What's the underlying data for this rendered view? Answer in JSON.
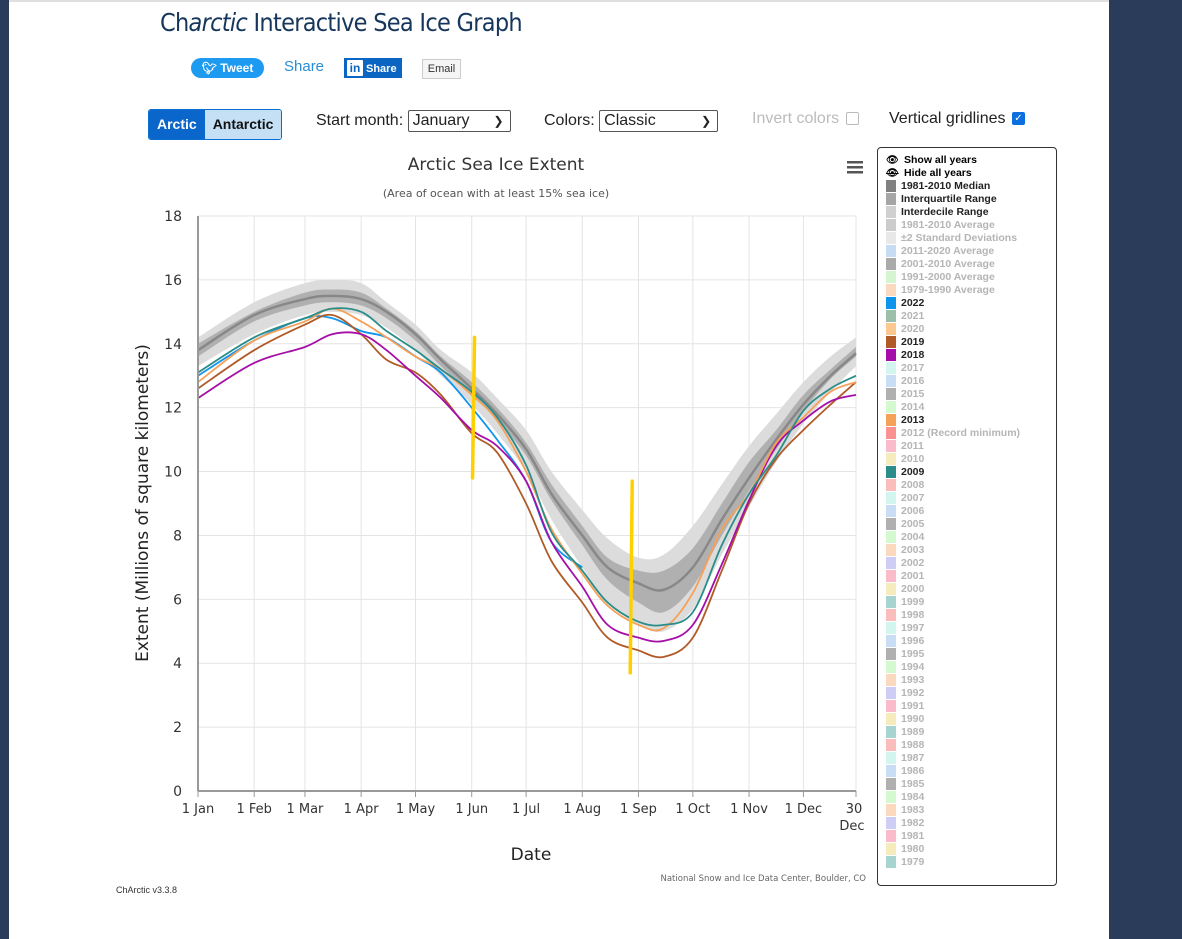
{
  "page": {
    "title_prefix": "Ch",
    "title_italic": "arctic",
    "title_suffix": " Interactive Sea Ice Graph",
    "version": "ChArctic v3.3.8"
  },
  "social": {
    "tweet_label": "Tweet",
    "share_label": "Share",
    "linkedin_label": "Share",
    "linkedin_icon": "in",
    "email_label": "Email"
  },
  "controls": {
    "hemisphere": {
      "options": [
        "Arctic",
        "Antarctic"
      ],
      "selected": "Arctic"
    },
    "start_month_label": "Start month:",
    "start_month_value": "January",
    "colors_label": "Colors:",
    "colors_value": "Classic",
    "invert_colors_label": "Invert colors",
    "invert_colors_checked": false,
    "vertical_gridlines_label": "Vertical gridlines",
    "vertical_gridlines_checked": true
  },
  "legend": {
    "show_all": "Show all years",
    "hide_all": "Hide all years",
    "items": [
      {
        "label": "1981-2010 Median",
        "color": "#808080",
        "active": true
      },
      {
        "label": "Interquartile Range",
        "color": "#a6a6a6",
        "active": true
      },
      {
        "label": "Interdecile Range",
        "color": "#d0d0d0",
        "active": true
      },
      {
        "label": "1981-2010 Average",
        "color": "#cccccc",
        "active": false
      },
      {
        "label": "±2 Standard Deviations",
        "color": "#e8e8e8",
        "active": false
      },
      {
        "label": "2011-2020 Average",
        "color": "#c6dcf2",
        "active": false
      },
      {
        "label": "2001-2010 Average",
        "color": "#aaaaaa",
        "active": false
      },
      {
        "label": "1991-2000 Average",
        "color": "#d4f5d0",
        "active": false
      },
      {
        "label": "1979-1990 Average",
        "color": "#fad9bf",
        "active": false
      },
      {
        "label": "2022",
        "color": "#0f95ec",
        "active": true
      },
      {
        "label": "2021",
        "color": "#9bbfaa",
        "active": false
      },
      {
        "label": "2020",
        "color": "#fdc790",
        "active": false
      },
      {
        "label": "2019",
        "color": "#b05a28",
        "active": true
      },
      {
        "label": "2018",
        "color": "#a50ea8",
        "active": true
      },
      {
        "label": "2017",
        "color": "#d2f5f0",
        "active": false
      },
      {
        "label": "2016",
        "color": "#c9def5",
        "active": false
      },
      {
        "label": "2015",
        "color": "#b0b0b0",
        "active": false
      },
      {
        "label": "2014",
        "color": "#d4f8cf",
        "active": false
      },
      {
        "label": "2013",
        "color": "#f5a15a",
        "active": true
      },
      {
        "label": "2012 (Record minimum)",
        "color": "#fb9191",
        "active": false
      },
      {
        "label": "2011",
        "color": "#fabccb",
        "active": false
      },
      {
        "label": "2010",
        "color": "#f5ebbd",
        "active": false
      },
      {
        "label": "2009",
        "color": "#2a8d8a",
        "active": true
      },
      {
        "label": "2008",
        "color": "#fbbcbc",
        "active": false
      },
      {
        "label": "2007",
        "color": "#d2f5f0",
        "active": false
      },
      {
        "label": "2006",
        "color": "#c9def5",
        "active": false
      },
      {
        "label": "2005",
        "color": "#b0b0b0",
        "active": false
      },
      {
        "label": "2004",
        "color": "#d4f8cf",
        "active": false
      },
      {
        "label": "2003",
        "color": "#fad9bf",
        "active": false
      },
      {
        "label": "2002",
        "color": "#cdcdf5",
        "active": false
      },
      {
        "label": "2001",
        "color": "#fabccb",
        "active": false
      },
      {
        "label": "2000",
        "color": "#f5ebbd",
        "active": false
      },
      {
        "label": "1999",
        "color": "#a8d4d0",
        "active": false
      },
      {
        "label": "1998",
        "color": "#fbbcbc",
        "active": false
      },
      {
        "label": "1997",
        "color": "#d2f5f0",
        "active": false
      },
      {
        "label": "1996",
        "color": "#c9def5",
        "active": false
      },
      {
        "label": "1995",
        "color": "#b0b0b0",
        "active": false
      },
      {
        "label": "1994",
        "color": "#d4f8cf",
        "active": false
      },
      {
        "label": "1993",
        "color": "#fad9bf",
        "active": false
      },
      {
        "label": "1992",
        "color": "#cdcdf5",
        "active": false
      },
      {
        "label": "1991",
        "color": "#fabccb",
        "active": false
      },
      {
        "label": "1990",
        "color": "#f5ebbd",
        "active": false
      },
      {
        "label": "1989",
        "color": "#a8d4d0",
        "active": false
      },
      {
        "label": "1988",
        "color": "#fbbcbc",
        "active": false
      },
      {
        "label": "1987",
        "color": "#d2f5f0",
        "active": false
      },
      {
        "label": "1986",
        "color": "#c9def5",
        "active": false
      },
      {
        "label": "1985",
        "color": "#b0b0b0",
        "active": false
      },
      {
        "label": "1984",
        "color": "#d4f8cf",
        "active": false
      },
      {
        "label": "1983",
        "color": "#fad9bf",
        "active": false
      },
      {
        "label": "1982",
        "color": "#cdcdf5",
        "active": false
      },
      {
        "label": "1981",
        "color": "#fabccb",
        "active": false
      },
      {
        "label": "1980",
        "color": "#f5ebbd",
        "active": false
      },
      {
        "label": "1979",
        "color": "#a8d4d0",
        "active": false
      }
    ]
  },
  "chart_data": {
    "type": "line",
    "title": "Arctic Sea Ice Extent",
    "subtitle": "(Area of ocean with at least 15% sea ice)",
    "xlabel": "Date",
    "ylabel": "Extent (Millions of square kilometers)",
    "credit": "National Snow and Ice Data Center, Boulder, CO",
    "ylim": [
      0,
      18
    ],
    "yticks": [
      0,
      2,
      4,
      6,
      8,
      10,
      12,
      14,
      16,
      18
    ],
    "xlim_day": [
      1,
      364
    ],
    "xticks": [
      {
        "day": 1,
        "label": "1 Jan"
      },
      {
        "day": 32,
        "label": "1 Feb"
      },
      {
        "day": 60,
        "label": "1 Mar"
      },
      {
        "day": 91,
        "label": "1 Apr"
      },
      {
        "day": 121,
        "label": "1 May"
      },
      {
        "day": 152,
        "label": "1 Jun"
      },
      {
        "day": 182,
        "label": "1 Jul"
      },
      {
        "day": 213,
        "label": "1 Aug"
      },
      {
        "day": 244,
        "label": "1 Sep"
      },
      {
        "day": 274,
        "label": "1 Oct"
      },
      {
        "day": 305,
        "label": "1 Nov"
      },
      {
        "day": 335,
        "label": "1 Dec"
      },
      {
        "day": 364,
        "label": "30 Dec"
      }
    ],
    "grid": {
      "horizontal": true,
      "vertical": true
    },
    "legend_position": "right",
    "x_days": [
      1,
      32,
      60,
      75,
      91,
      105,
      121,
      135,
      152,
      166,
      182,
      196,
      213,
      227,
      244,
      258,
      274,
      290,
      305,
      320,
      335,
      350,
      364
    ],
    "bands": {
      "interdecile": {
        "low": [
          13.3,
          14.3,
          14.9,
          15.0,
          14.9,
          14.5,
          13.8,
          13.0,
          12.1,
          11.2,
          10.0,
          8.5,
          7.0,
          5.9,
          5.2,
          5.0,
          5.7,
          7.4,
          8.9,
          10.3,
          11.5,
          12.5,
          13.3
        ],
        "high": [
          14.2,
          15.3,
          15.9,
          16.0,
          15.9,
          15.3,
          14.6,
          13.8,
          13.1,
          12.3,
          11.3,
          10.0,
          8.8,
          7.9,
          7.3,
          7.4,
          8.3,
          9.6,
          10.8,
          11.8,
          12.8,
          13.6,
          14.2
        ]
      },
      "interquartile": {
        "low": [
          13.6,
          14.7,
          15.2,
          15.3,
          15.2,
          14.8,
          14.1,
          13.3,
          12.4,
          11.6,
          10.5,
          9.1,
          7.7,
          6.6,
          5.9,
          5.6,
          6.4,
          8.0,
          9.4,
          10.7,
          11.9,
          12.9,
          13.6
        ],
        "high": [
          14.0,
          15.0,
          15.6,
          15.7,
          15.6,
          15.1,
          14.4,
          13.6,
          12.8,
          12.0,
          10.9,
          9.6,
          8.3,
          7.3,
          6.9,
          6.9,
          7.6,
          9.0,
          10.3,
          11.3,
          12.4,
          13.2,
          13.9
        ]
      }
    },
    "series": [
      {
        "name": "1981-2010 Median",
        "color": "#888888",
        "values": [
          13.8,
          14.9,
          15.4,
          15.5,
          15.4,
          15.0,
          14.3,
          13.5,
          12.6,
          11.8,
          10.7,
          9.3,
          8.0,
          7.0,
          6.5,
          6.3,
          7.0,
          8.5,
          9.8,
          11.0,
          12.1,
          13.0,
          13.7
        ]
      },
      {
        "name": "2022",
        "color": "#0f95ec",
        "values": [
          13.0,
          14.1,
          14.8,
          14.8,
          14.4,
          14.2,
          13.6,
          13.1,
          12.0,
          11.0,
          9.7,
          7.8,
          7.0,
          null,
          null,
          null,
          null,
          null,
          null,
          null,
          null,
          null,
          null
        ]
      },
      {
        "name": "2019",
        "color": "#b05a28",
        "values": [
          12.6,
          13.8,
          14.6,
          14.9,
          14.3,
          13.5,
          13.1,
          12.4,
          11.2,
          10.6,
          9.0,
          7.2,
          5.9,
          4.8,
          4.4,
          4.2,
          4.8,
          6.9,
          9.0,
          10.4,
          11.3,
          12.1,
          12.8
        ]
      },
      {
        "name": "2018",
        "color": "#a50ea8",
        "values": [
          12.3,
          13.4,
          13.9,
          14.3,
          14.3,
          13.8,
          13.0,
          12.3,
          11.3,
          10.8,
          9.7,
          7.8,
          6.4,
          5.2,
          4.8,
          4.7,
          5.2,
          7.1,
          9.1,
          10.8,
          11.6,
          12.2,
          12.4
        ]
      },
      {
        "name": "2013",
        "color": "#f5a15a",
        "values": [
          12.8,
          14.1,
          14.7,
          15.1,
          14.7,
          14.2,
          13.6,
          13.2,
          12.4,
          11.6,
          10.0,
          8.2,
          6.8,
          5.8,
          5.2,
          5.1,
          6.2,
          8.2,
          9.3,
          10.9,
          11.7,
          12.5,
          12.8
        ]
      },
      {
        "name": "2009",
        "color": "#2a8d8a",
        "values": [
          13.1,
          14.2,
          14.8,
          15.1,
          15.0,
          14.4,
          13.8,
          13.2,
          12.5,
          11.7,
          10.2,
          8.1,
          6.9,
          5.9,
          5.3,
          5.2,
          5.6,
          7.7,
          9.3,
          10.5,
          11.9,
          12.6,
          13.0
        ]
      }
    ],
    "annotations": [
      {
        "type": "vertical-marker",
        "color": "#ffd000",
        "day": 153,
        "y_from": 9.8,
        "y_to": 14.2
      },
      {
        "type": "vertical-marker",
        "color": "#ffd000",
        "day": 240,
        "y_from": 3.7,
        "y_to": 9.7
      }
    ]
  }
}
